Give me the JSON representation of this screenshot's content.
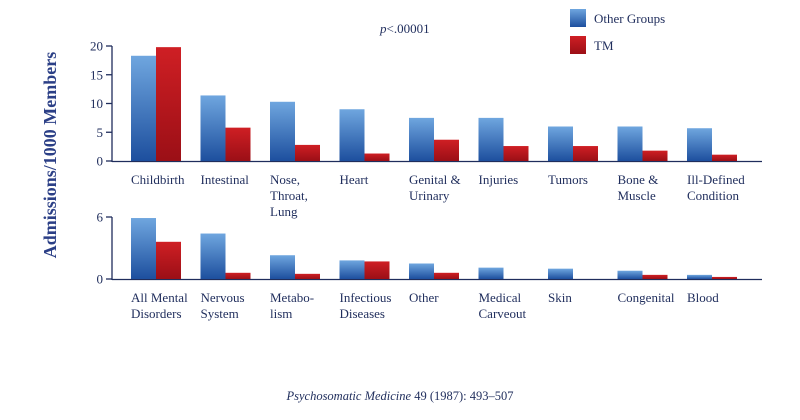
{
  "chart_data": [
    {
      "type": "bar",
      "categories": [
        [
          "Childbirth"
        ],
        [
          "Intestinal"
        ],
        [
          "Nose,",
          "Throat,",
          "Lung"
        ],
        [
          "Heart"
        ],
        [
          "Genital &",
          "Urinary"
        ],
        [
          "Injuries"
        ],
        [
          "Tumors"
        ],
        [
          "Bone &",
          "Muscle"
        ],
        [
          "Ill-Defined",
          "Condition"
        ]
      ],
      "series": [
        {
          "name": "Other Groups",
          "values": [
            18.3,
            11.4,
            10.3,
            9.0,
            7.5,
            7.5,
            6.0,
            6.0,
            5.7
          ]
        },
        {
          "name": "TM",
          "values": [
            19.8,
            5.8,
            2.8,
            1.3,
            3.7,
            2.6,
            2.6,
            1.8,
            1.1
          ]
        }
      ],
      "ylim": [
        0,
        20
      ],
      "yticks": [
        0,
        5,
        10,
        15,
        20
      ]
    },
    {
      "type": "bar",
      "categories": [
        [
          "All Mental",
          "Disorders"
        ],
        [
          "Nervous",
          "System"
        ],
        [
          "Metabo-",
          "lism"
        ],
        [
          "Infectious",
          "Diseases"
        ],
        [
          "Other"
        ],
        [
          "Medical",
          "Carveout"
        ],
        [
          "Skin"
        ],
        [
          "Congenital"
        ],
        [
          "Blood"
        ]
      ],
      "series": [
        {
          "name": "Other Groups",
          "values": [
            5.9,
            4.4,
            2.3,
            1.8,
            1.5,
            1.1,
            1.0,
            0.8,
            0.4
          ]
        },
        {
          "name": "TM",
          "values": [
            3.6,
            0.6,
            0.5,
            1.7,
            0.6,
            0.0,
            0.0,
            0.4,
            0.2
          ]
        }
      ],
      "ylim": [
        0,
        6
      ],
      "yticks": [
        0,
        6
      ]
    }
  ],
  "ylabel": "Admissions/1000 Members",
  "annotation": "p<.00001",
  "annotation_italic": "p",
  "annotation_rest": "<.00001",
  "legend": [
    {
      "label": "Other Groups",
      "color": "#5f95d4"
    },
    {
      "label": "TM",
      "color": "#c0141b"
    }
  ],
  "citation": {
    "journal": "Psychosomatic Medicine",
    "details": " 49 (1987): 493–507"
  },
  "colors": {
    "other_top": "#6fa6df",
    "other_bottom": "#1d4f9e",
    "tm_top": "#cf1f24",
    "tm_bottom": "#9b0f16",
    "axis": "#1f2d5c"
  }
}
